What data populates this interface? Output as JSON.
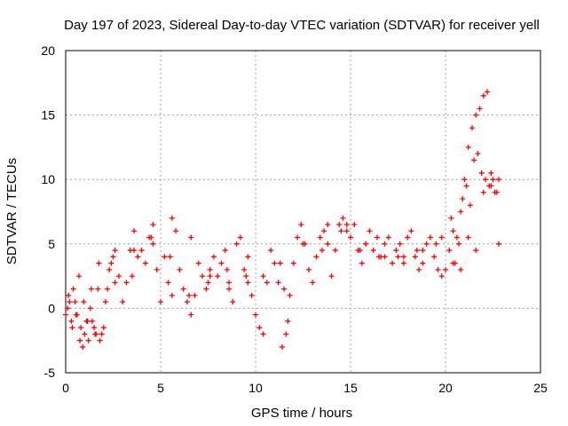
{
  "chart_data": {
    "type": "scatter",
    "title": "Day 197 of 2023, Sidereal Day-to-day VTEC variation (SDTVAR) for receiver yell",
    "xlabel": "GPS time / hours",
    "ylabel": "SDTVAR / TECUs",
    "xlim": [
      0,
      25
    ],
    "ylim": [
      -5,
      20
    ],
    "xticks": [
      "0",
      "5",
      "10",
      "15",
      "20",
      "25"
    ],
    "yticks": [
      "-5",
      "0",
      "5",
      "10",
      "15",
      "20"
    ],
    "grid": true,
    "marker": "plus",
    "color": "#ff0000",
    "series": [
      {
        "name": "SDTVAR",
        "x": [
          0.0,
          0.2,
          0.4,
          0.6,
          0.8,
          1.0,
          1.2,
          1.4,
          1.6,
          1.8,
          2.0,
          2.2,
          2.4,
          2.6,
          2.8,
          3.0,
          3.2,
          3.4,
          3.6,
          3.8,
          4.0,
          4.2,
          4.4,
          4.6,
          4.8,
          5.0,
          5.2,
          5.4,
          5.6,
          5.8,
          6.0,
          6.2,
          6.4,
          6.6,
          6.8,
          7.0,
          7.2,
          7.4,
          7.6,
          7.8,
          8.0,
          8.2,
          8.4,
          8.6,
          8.8,
          9.0,
          9.2,
          9.4,
          9.6,
          9.8,
          10.0,
          10.2,
          10.4,
          10.6,
          10.8,
          11.0,
          11.2,
          11.4,
          11.6,
          11.8,
          12.0,
          12.2,
          12.4,
          12.6,
          12.8,
          13.0,
          13.2,
          13.4,
          13.6,
          13.8,
          14.0,
          14.2,
          14.4,
          14.6,
          14.8,
          15.0,
          15.2,
          15.4,
          15.6,
          15.8,
          16.0,
          16.2,
          16.4,
          16.6,
          16.8,
          17.0,
          17.2,
          17.4,
          17.6,
          17.8,
          18.0,
          18.2,
          18.4,
          18.6,
          18.8,
          19.0,
          19.2,
          19.4,
          19.6,
          19.8,
          20.0,
          20.2,
          20.4,
          20.6,
          20.8,
          21.0,
          21.2,
          21.4,
          21.6,
          21.8,
          22.0,
          22.2,
          22.4,
          22.6,
          22.8,
          0.1,
          0.3,
          0.5,
          0.7,
          0.9,
          1.1,
          1.3,
          1.5,
          1.7,
          1.9,
          2.1,
          2.3,
          2.5,
          3.5,
          4.5,
          5.5,
          6.5,
          7.5,
          8.5,
          9.5,
          11.3,
          11.5,
          11.7,
          13.5,
          14.5,
          15.5,
          16.5,
          17.5,
          18.5,
          19.5,
          20.3,
          20.5,
          20.7,
          20.9,
          21.1,
          21.3,
          21.5,
          21.7,
          21.9,
          22.1,
          22.3,
          22.5,
          22.7,
          0.15,
          0.35,
          0.55,
          0.75,
          0.95,
          1.15,
          1.35,
          1.55,
          1.75,
          2.6,
          3.6,
          4.6,
          5.6,
          6.6,
          7.6,
          8.6,
          9.6,
          10.4,
          12.5,
          13.8,
          14.8,
          15.8,
          16.8,
          17.8,
          18.8,
          19.8,
          20.4,
          20.8,
          21.2,
          21.6,
          22.0,
          22.4,
          22.8
        ],
        "y": [
          -0.5,
          0.5,
          1.5,
          -0.5,
          -1.5,
          -2.0,
          -2.5,
          -1.0,
          -2.0,
          -2.5,
          -1.5,
          1.5,
          3.5,
          4.5,
          2.5,
          0.5,
          2.0,
          4.5,
          6.0,
          4.0,
          4.5,
          3.5,
          5.5,
          6.5,
          3.0,
          0.5,
          4.0,
          2.0,
          7.0,
          6.0,
          3.0,
          1.5,
          0.5,
          -0.5,
          1.0,
          3.5,
          2.5,
          1.5,
          2.5,
          4.0,
          2.5,
          3.5,
          4.5,
          1.5,
          0.5,
          5.0,
          5.5,
          3.0,
          2.0,
          1.0,
          -0.5,
          -1.5,
          -2.0,
          2.0,
          4.5,
          3.5,
          2.0,
          -3.0,
          -2.0,
          1.0,
          3.5,
          5.5,
          6.5,
          5.0,
          3.0,
          2.0,
          4.0,
          5.5,
          6.0,
          5.0,
          2.5,
          4.5,
          6.5,
          7.0,
          6.5,
          5.5,
          6.5,
          4.5,
          3.5,
          5.0,
          6.0,
          4.5,
          5.5,
          4.0,
          5.0,
          5.5,
          3.5,
          4.5,
          5.0,
          3.5,
          5.5,
          6.0,
          4.0,
          3.0,
          3.5,
          5.0,
          5.5,
          4.0,
          3.0,
          2.5,
          3.0,
          4.5,
          6.0,
          5.5,
          7.5,
          10.0,
          12.5,
          14.0,
          15.0,
          15.5,
          16.5,
          16.8,
          9.5,
          9.0,
          10.0,
          0.0,
          -1.0,
          0.5,
          2.5,
          -3.0,
          -1.0,
          0.0,
          -1.5,
          1.5,
          -2.0,
          0.5,
          3.0,
          4.0,
          2.5,
          5.5,
          4.0,
          1.0,
          2.0,
          3.0,
          2.5,
          3.5,
          1.5,
          -1.0,
          4.5,
          6.0,
          4.5,
          4.0,
          4.0,
          4.5,
          5.0,
          7.0,
          3.5,
          5.0,
          8.5,
          9.5,
          8.0,
          11.5,
          12.0,
          10.5,
          10.0,
          9.5,
          10.0,
          9.0,
          1.0,
          -1.5,
          -0.5,
          -2.5,
          0.5,
          -1.0,
          1.5,
          -2.0,
          3.5,
          2.0,
          4.5,
          5.0,
          1.0,
          5.5,
          3.0,
          2.0,
          4.0,
          2.5,
          5.0,
          6.5,
          6.0,
          5.0,
          4.0,
          4.0,
          4.5,
          5.5,
          3.5,
          3.0,
          5.5,
          4.5,
          9.0,
          10.5,
          5.0
        ]
      }
    ]
  }
}
